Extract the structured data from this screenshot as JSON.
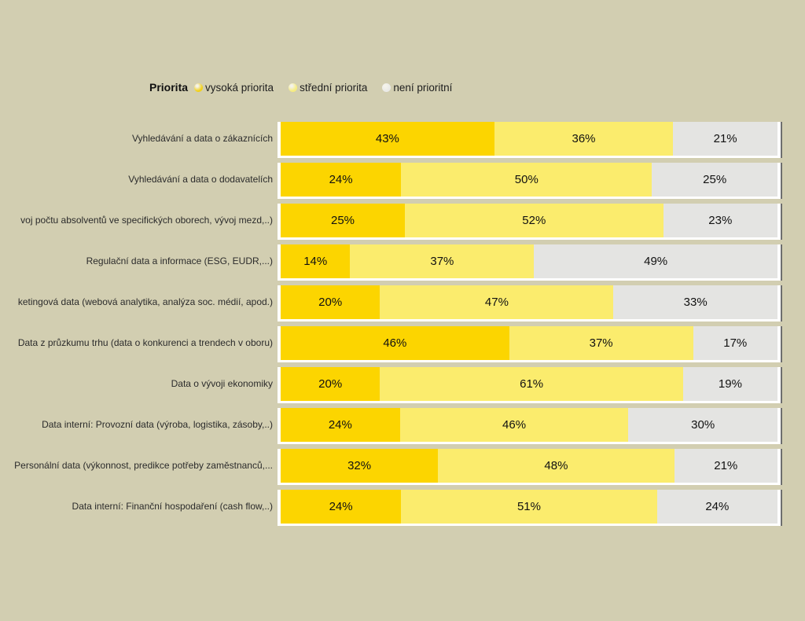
{
  "page": {
    "background_color": "#D2CEB1",
    "bar_frame_color": "#FFFFFF",
    "bar_shadow_color": "#6E6E6E"
  },
  "legend": {
    "title": "Priorita",
    "items": [
      {
        "label": "vysoká priorita",
        "color": "#F1D01A"
      },
      {
        "label": "střední priorita",
        "color": "#F6EC80"
      },
      {
        "label": "není prioritní",
        "color": "#EAEAE7"
      }
    ]
  },
  "chart_data": {
    "type": "bar",
    "orientation": "horizontal-stacked",
    "unit": "%",
    "legend_title": "Priorita",
    "value_labels_shown_inside_segments": true,
    "categories": [
      "Vyhledávání a data o zákaznících",
      "Vyhledávání a data o dodavatelích",
      "voj počtu absolventů ve specifických oborech, vývoj mezd,..)",
      "Regulační data a informace (ESG, EUDR,...)",
      "ketingová data (webová analytika, analýza soc. médií, apod.)",
      "Data z průzkumu trhu (data o konkurenci a trendech v oboru)",
      "Data o vývoji ekonomiky",
      "Data interní: Provozní data (výroba, logistika, zásoby,..)",
      "Personální data (výkonnost, predikce potřeby zaměstnanců,...",
      "Data interní: Finanční hospodaření (cash flow,..)"
    ],
    "series": [
      {
        "name": "vysoká priorita",
        "color": "#FCD500",
        "values": [
          43,
          24,
          25,
          14,
          20,
          46,
          20,
          24,
          32,
          24
        ]
      },
      {
        "name": "střední priorita",
        "color": "#FBEC6D",
        "values": [
          36,
          50,
          52,
          37,
          47,
          37,
          61,
          46,
          48,
          51
        ]
      },
      {
        "name": "není prioritní",
        "color": "#E4E4E2",
        "values": [
          21,
          25,
          23,
          49,
          33,
          17,
          19,
          30,
          21,
          24
        ]
      }
    ]
  }
}
